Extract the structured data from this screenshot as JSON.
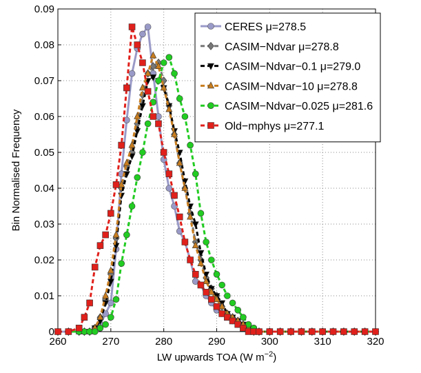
{
  "chart_data": {
    "type": "line",
    "xlabel": {
      "text": "LW upwards TOA (W m",
      "sup": "−2",
      "end": ")"
    },
    "ylabel": "Bin Normalised Frequency",
    "xlim": [
      260,
      320
    ],
    "ylim": [
      0,
      0.09
    ],
    "xticks": [
      260,
      270,
      280,
      290,
      300,
      310,
      320
    ],
    "yticks": [
      0,
      0.01,
      0.02,
      0.03,
      0.04,
      0.05,
      0.06,
      0.07,
      0.08,
      0.09
    ],
    "grid": true,
    "legend": "upper right",
    "x": [
      260,
      262,
      264,
      265,
      266,
      267,
      268,
      269,
      270,
      271,
      272,
      273,
      274,
      275,
      276,
      277,
      278,
      279,
      280,
      281,
      282,
      283,
      284,
      285,
      286,
      287,
      288,
      289,
      290,
      291,
      292,
      293,
      294,
      295,
      296,
      297,
      298,
      300,
      302,
      304,
      306,
      308,
      310,
      312,
      314,
      316,
      318,
      320
    ],
    "series": [
      {
        "name": "CERES μ=278.5",
        "color": "#9a9ac8",
        "marker": "circle",
        "linestyle": "solid",
        "values": [
          0,
          0,
          0,
          0,
          0,
          0.001,
          0.002,
          0.005,
          0.008,
          0.023,
          0.044,
          0.059,
          0.072,
          0.079,
          0.083,
          0.085,
          0.072,
          0.06,
          0.048,
          0.04,
          0.035,
          0.028,
          0.025,
          0.02,
          0.014,
          0.013,
          0.01,
          0.008,
          0.006,
          0.005,
          0.004,
          0.003,
          0.002,
          0.001,
          0.001,
          0.001,
          0,
          0,
          0,
          0,
          0,
          0,
          0,
          0,
          0,
          0,
          0,
          0
        ]
      },
      {
        "name": "CASIM−Ndvar μ=278.8",
        "color": "#777777",
        "marker": "diamond",
        "linestyle": "dashed",
        "values": [
          0,
          0,
          0,
          0,
          0,
          0.001,
          0.004,
          0.009,
          0.016,
          0.026,
          0.04,
          0.046,
          0.05,
          0.058,
          0.066,
          0.072,
          0.074,
          0.075,
          0.07,
          0.063,
          0.055,
          0.047,
          0.04,
          0.033,
          0.025,
          0.02,
          0.015,
          0.012,
          0.01,
          0.007,
          0.005,
          0.004,
          0.003,
          0.002,
          0.001,
          0,
          0,
          0,
          0,
          0,
          0,
          0,
          0,
          0,
          0,
          0,
          0,
          0
        ]
      },
      {
        "name": "CASIM−Ndvar−0.1 μ=279.0",
        "color": "#000000",
        "marker": "triangle-down",
        "linestyle": "dashed",
        "values": [
          0,
          0,
          0,
          0,
          0,
          0.001,
          0.003,
          0.008,
          0.014,
          0.024,
          0.038,
          0.044,
          0.049,
          0.056,
          0.063,
          0.07,
          0.071,
          0.07,
          0.068,
          0.063,
          0.056,
          0.05,
          0.042,
          0.035,
          0.03,
          0.022,
          0.016,
          0.012,
          0.01,
          0.008,
          0.005,
          0.004,
          0.003,
          0.002,
          0.001,
          0,
          0,
          0,
          0,
          0,
          0,
          0,
          0,
          0,
          0,
          0,
          0,
          0
        ]
      },
      {
        "name": "CASIM−Ndvar−10 μ=278.8",
        "color": "#c87d1f",
        "marker": "triangle-up",
        "linestyle": "dashed",
        "values": [
          0,
          0,
          0,
          0,
          0,
          0.001,
          0.004,
          0.01,
          0.017,
          0.027,
          0.041,
          0.047,
          0.052,
          0.06,
          0.068,
          0.072,
          0.077,
          0.074,
          0.068,
          0.062,
          0.055,
          0.047,
          0.04,
          0.032,
          0.024,
          0.019,
          0.014,
          0.011,
          0.009,
          0.007,
          0.005,
          0.004,
          0.003,
          0.002,
          0.001,
          0,
          0,
          0,
          0,
          0,
          0,
          0,
          0,
          0,
          0,
          0,
          0,
          0
        ]
      },
      {
        "name": "CASIM−Ndvar−0.025 μ=281.6",
        "color": "#22cc22",
        "marker": "circle",
        "linestyle": "dashed",
        "values": [
          0,
          0,
          0,
          0,
          0,
          0,
          0.001,
          0.002,
          0.004,
          0.009,
          0.019,
          0.027,
          0.035,
          0.043,
          0.05,
          0.058,
          0.064,
          0.07,
          0.075,
          0.0765,
          0.072,
          0.065,
          0.06,
          0.052,
          0.044,
          0.033,
          0.025,
          0.02,
          0.016,
          0.013,
          0.01,
          0.008,
          0.006,
          0.004,
          0.002,
          0.001,
          0,
          0,
          0,
          0,
          0,
          0,
          0,
          0,
          0,
          0,
          0,
          0
        ]
      },
      {
        "name": "Old−mphys μ=277.1",
        "color": "#e0201b",
        "marker": "square",
        "linestyle": "dashed",
        "values": [
          0,
          0,
          0.001,
          0.004,
          0.008,
          0.018,
          0.024,
          0.027,
          0.033,
          0.041,
          0.052,
          0.068,
          0.085,
          0.08,
          0.075,
          0.067,
          0.06,
          0.058,
          0.05,
          0.044,
          0.038,
          0.032,
          0.025,
          0.02,
          0.016,
          0.013,
          0.011,
          0.009,
          0.007,
          0.005,
          0.004,
          0.003,
          0.002,
          0.001,
          0,
          0,
          0,
          0,
          0,
          0,
          0,
          0,
          0,
          0,
          0,
          0,
          0,
          0
        ]
      }
    ]
  }
}
